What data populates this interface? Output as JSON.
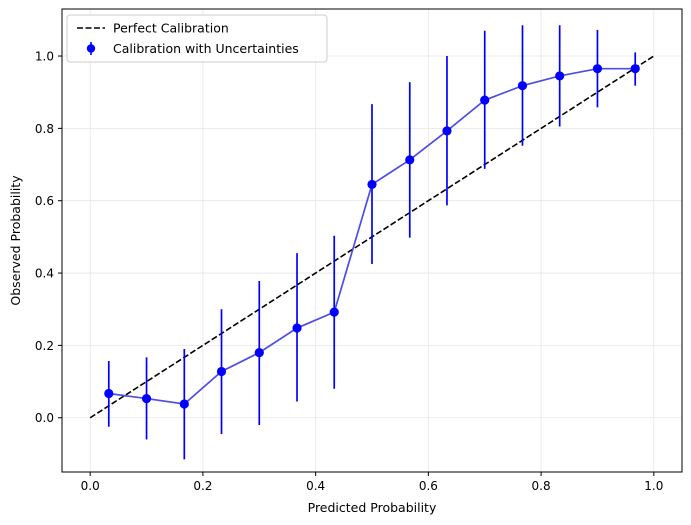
{
  "chart_data": {
    "type": "scatter",
    "xlabel": "Predicted Probability",
    "ylabel": "Observed Probability",
    "xlim": [
      -0.05,
      1.05
    ],
    "ylim": [
      -0.15,
      1.13
    ],
    "xticks": [
      "0.0",
      "0.2",
      "0.4",
      "0.6",
      "0.8",
      "1.0"
    ],
    "yticks": [
      "0.0",
      "0.2",
      "0.4",
      "0.6",
      "0.8",
      "1.0"
    ],
    "grid": true,
    "legend_position": "top-left",
    "colors": {
      "reference": "#000000",
      "points": "#0000ff",
      "line": "#4d4de6",
      "grid": "#e6e6e6"
    },
    "series": [
      {
        "name": "Perfect Calibration",
        "style": "dashed",
        "x": [
          0.0,
          1.0
        ],
        "y": [
          0.0,
          1.0
        ]
      },
      {
        "name": "Calibration with Uncertainties",
        "style": "errorbar",
        "x": [
          0.033,
          0.1,
          0.167,
          0.233,
          0.3,
          0.367,
          0.433,
          0.5,
          0.567,
          0.633,
          0.7,
          0.767,
          0.833,
          0.9,
          0.967
        ],
        "y": [
          0.067,
          0.053,
          0.038,
          0.128,
          0.18,
          0.248,
          0.292,
          0.645,
          0.713,
          0.793,
          0.878,
          0.918,
          0.945,
          0.965,
          0.965
        ],
        "yerr_lower": [
          -0.025,
          -0.06,
          -0.115,
          -0.045,
          -0.02,
          0.045,
          0.08,
          0.425,
          0.498,
          0.587,
          0.688,
          0.752,
          0.805,
          0.858,
          0.918
        ],
        "yerr_upper": [
          0.157,
          0.167,
          0.19,
          0.3,
          0.378,
          0.455,
          0.503,
          0.867,
          0.928,
          1.0,
          1.07,
          1.085,
          1.085,
          1.072,
          1.01
        ]
      }
    ]
  }
}
